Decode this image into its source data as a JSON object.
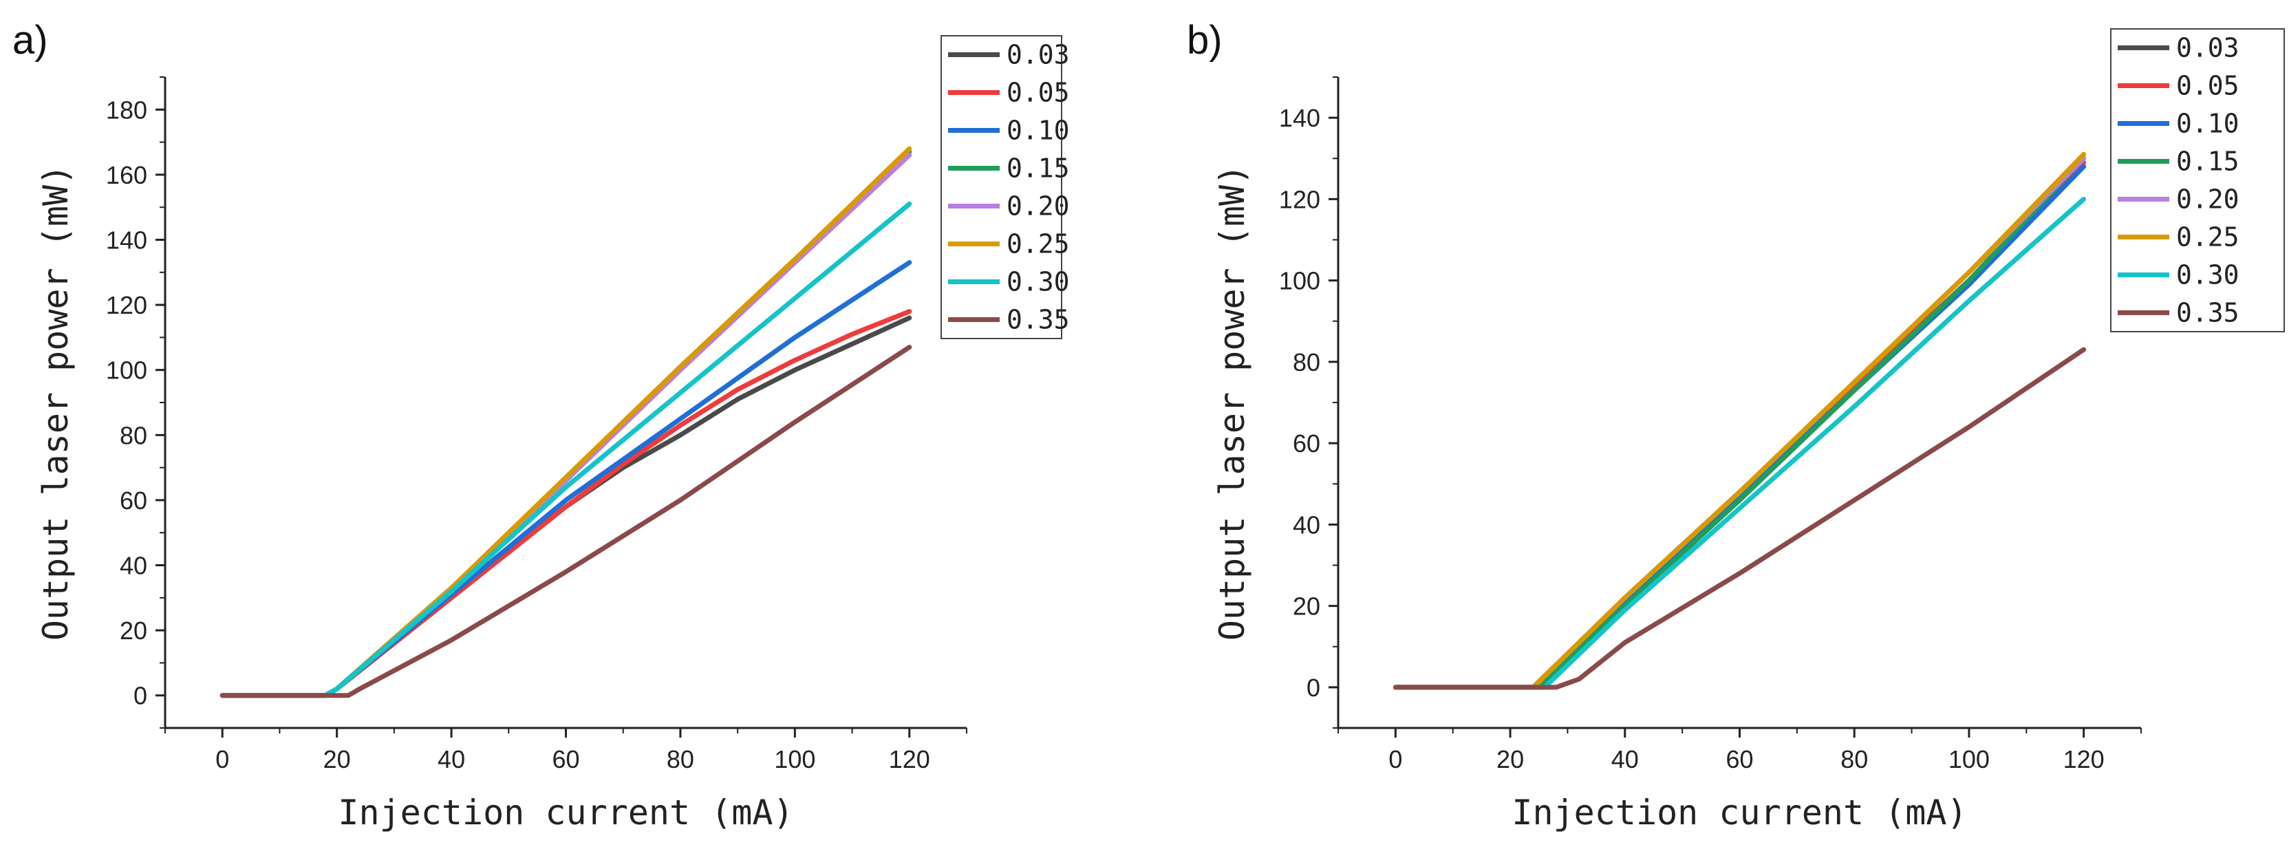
{
  "chart_data": [
    {
      "type": "line",
      "panel": "a)",
      "xlabel": "Injection current (mA)",
      "ylabel": "Output laser power (mW)",
      "xlim": [
        -10,
        130
      ],
      "ylim": [
        -10,
        190
      ],
      "xticks": [
        0,
        20,
        40,
        60,
        80,
        100,
        120
      ],
      "yticks": [
        0,
        20,
        40,
        60,
        80,
        100,
        120,
        140,
        160,
        180
      ],
      "legend_position": "top-right",
      "series": [
        {
          "name": "0.03",
          "color": "#4a4a4a",
          "x": [
            0,
            18,
            20,
            40,
            60,
            70,
            80,
            90,
            100,
            110,
            120
          ],
          "y": [
            0,
            0,
            2,
            30,
            58,
            70,
            80,
            91,
            100,
            108,
            116
          ]
        },
        {
          "name": "0.05",
          "color": "#ef3b3b",
          "x": [
            0,
            18,
            20,
            40,
            60,
            70,
            80,
            90,
            100,
            110,
            120
          ],
          "y": [
            0,
            0,
            2,
            30,
            58,
            71,
            83,
            94,
            103,
            111,
            118
          ]
        },
        {
          "name": "0.10",
          "color": "#1f6fd6",
          "x": [
            0,
            18,
            20,
            40,
            60,
            80,
            100,
            120
          ],
          "y": [
            0,
            0,
            2,
            31,
            60,
            85,
            110,
            133
          ]
        },
        {
          "name": "0.15",
          "color": "#1f9e5a",
          "x": [
            0,
            18,
            20,
            40,
            60,
            80,
            100,
            120
          ],
          "y": [
            0,
            0,
            2,
            33,
            66,
            101,
            134,
            167
          ]
        },
        {
          "name": "0.20",
          "color": "#b97fe0",
          "x": [
            0,
            18,
            20,
            40,
            60,
            80,
            100,
            120
          ],
          "y": [
            0,
            0,
            2,
            33,
            66,
            100,
            133,
            166
          ]
        },
        {
          "name": "0.25",
          "color": "#d99a00",
          "x": [
            0,
            18,
            20,
            40,
            60,
            80,
            100,
            120
          ],
          "y": [
            0,
            0,
            2,
            33,
            67,
            101,
            134,
            168
          ]
        },
        {
          "name": "0.30",
          "color": "#14c4c8",
          "x": [
            0,
            18,
            20,
            40,
            60,
            80,
            100,
            120
          ],
          "y": [
            0,
            0,
            2,
            32,
            64,
            93,
            122,
            151
          ]
        },
        {
          "name": "0.35",
          "color": "#8b4a4a",
          "x": [
            0,
            22,
            24,
            40,
            60,
            80,
            100,
            120
          ],
          "y": [
            0,
            0,
            2,
            17,
            38,
            60,
            84,
            107
          ]
        }
      ]
    },
    {
      "type": "line",
      "panel": "b)",
      "xlabel": "Injection current (mA)",
      "ylabel": "Output laser power (mW)",
      "xlim": [
        -10,
        130
      ],
      "ylim": [
        -10,
        150
      ],
      "xticks": [
        0,
        20,
        40,
        60,
        80,
        100,
        120
      ],
      "yticks": [
        0,
        20,
        40,
        60,
        80,
        100,
        120,
        140
      ],
      "legend_position": "top-right",
      "series": [
        {
          "name": "0.03",
          "color": "#4a4a4a",
          "x": [
            0,
            24,
            40,
            60,
            80,
            100,
            120
          ],
          "y": [
            0,
            0,
            22,
            48,
            74,
            100,
            128
          ]
        },
        {
          "name": "0.05",
          "color": "#ef3b3b",
          "x": [
            0,
            24,
            40,
            60,
            80,
            100,
            120
          ],
          "y": [
            0,
            0,
            22,
            48,
            74,
            100,
            129
          ]
        },
        {
          "name": "0.10",
          "color": "#1f6fd6",
          "x": [
            0,
            24,
            40,
            60,
            80,
            100,
            120
          ],
          "y": [
            0,
            0,
            21,
            47,
            73,
            99,
            128
          ]
        },
        {
          "name": "0.15",
          "color": "#1f9e5a",
          "x": [
            0,
            25,
            40,
            60,
            80,
            100,
            120
          ],
          "y": [
            0,
            0,
            20,
            46,
            73,
            100,
            130
          ]
        },
        {
          "name": "0.20",
          "color": "#b97fe0",
          "x": [
            0,
            24,
            40,
            60,
            80,
            100,
            120
          ],
          "y": [
            0,
            0,
            22,
            48,
            75,
            102,
            130
          ]
        },
        {
          "name": "0.25",
          "color": "#d99a00",
          "x": [
            0,
            24,
            40,
            60,
            80,
            100,
            120
          ],
          "y": [
            0,
            0,
            22,
            48,
            75,
            102,
            131
          ]
        },
        {
          "name": "0.30",
          "color": "#14c4c8",
          "x": [
            0,
            26,
            40,
            60,
            80,
            100,
            120
          ],
          "y": [
            0,
            0,
            19,
            44,
            69,
            95,
            120
          ]
        },
        {
          "name": "0.35",
          "color": "#8b4a4a",
          "x": [
            0,
            28,
            32,
            40,
            60,
            80,
            100,
            120
          ],
          "y": [
            0,
            0,
            2,
            11,
            28,
            46,
            64,
            83
          ]
        }
      ]
    }
  ]
}
